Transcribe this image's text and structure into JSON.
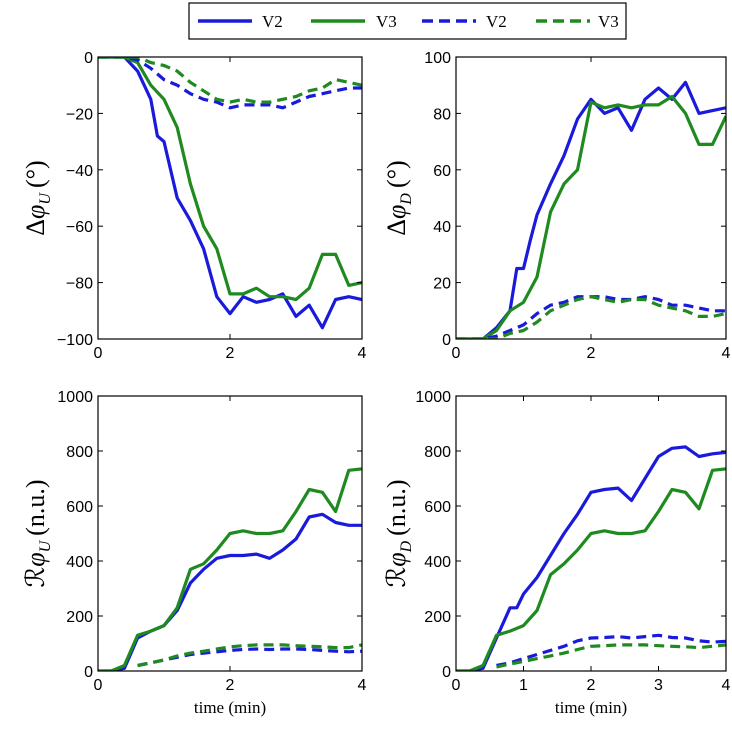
{
  "legend": {
    "entries": [
      {
        "label": "V2",
        "color": "#1a1adb",
        "dash": false
      },
      {
        "label": "V3",
        "color": "#1f8a1f",
        "dash": false
      },
      {
        "label": "V2",
        "color": "#1a1adb",
        "dash": true
      },
      {
        "label": "V3",
        "color": "#1f8a1f",
        "dash": true
      }
    ]
  },
  "chart_data": [
    {
      "type": "line",
      "ylabel": "Δφ_U (°)",
      "xlabel": "",
      "xlim": [
        0,
        4
      ],
      "ylim": [
        -100,
        0
      ],
      "xticks": [
        0,
        2,
        4
      ],
      "yticks": [
        -100,
        -80,
        -60,
        -40,
        -20,
        0
      ],
      "series": [
        {
          "name": "V2",
          "color": "#1a1adb",
          "dash": false,
          "x": [
            0,
            0.2,
            0.4,
            0.6,
            0.8,
            0.9,
            1.0,
            1.1,
            1.2,
            1.4,
            1.6,
            1.8,
            2.0,
            2.2,
            2.4,
            2.6,
            2.8,
            3.0,
            3.2,
            3.4,
            3.6,
            3.8,
            4.0
          ],
          "y": [
            0,
            0,
            0,
            -5,
            -15,
            -28,
            -30,
            -40,
            -50,
            -58,
            -68,
            -85,
            -91,
            -85,
            -87,
            -86,
            -84,
            -92,
            -88,
            -96,
            -86,
            -85,
            -86
          ]
        },
        {
          "name": "V3",
          "color": "#1f8a1f",
          "dash": false,
          "x": [
            0,
            0.2,
            0.4,
            0.6,
            0.8,
            1.0,
            1.2,
            1.4,
            1.6,
            1.8,
            2.0,
            2.2,
            2.4,
            2.6,
            2.8,
            3.0,
            3.2,
            3.4,
            3.6,
            3.8,
            4.0
          ],
          "y": [
            0,
            0,
            0,
            -2,
            -10,
            -15,
            -25,
            -45,
            -60,
            -68,
            -84,
            -84,
            -82,
            -85,
            -85,
            -86,
            -82,
            -70,
            -70,
            -81,
            -80
          ]
        },
        {
          "name": "V2",
          "color": "#1a1adb",
          "dash": true,
          "x": [
            0,
            0.2,
            0.4,
            0.6,
            0.8,
            1.0,
            1.2,
            1.4,
            1.6,
            1.8,
            2.0,
            2.2,
            2.4,
            2.6,
            2.8,
            3.0,
            3.2,
            3.4,
            3.6,
            3.8,
            4.0
          ],
          "y": [
            0,
            0,
            0,
            -1,
            -4,
            -8,
            -10,
            -13,
            -15,
            -16,
            -18,
            -17,
            -17,
            -17,
            -18,
            -16,
            -14,
            -13,
            -12,
            -11,
            -11
          ]
        },
        {
          "name": "V3",
          "color": "#1f8a1f",
          "dash": true,
          "x": [
            0,
            0.2,
            0.4,
            0.6,
            0.8,
            1.0,
            1.2,
            1.4,
            1.6,
            1.8,
            2.0,
            2.2,
            2.4,
            2.6,
            2.8,
            3.0,
            3.2,
            3.4,
            3.6,
            3.8,
            4.0
          ],
          "y": [
            0,
            0,
            0,
            0,
            -2,
            -3,
            -5,
            -9,
            -12,
            -15,
            -16,
            -15,
            -16,
            -16,
            -15,
            -14,
            -12,
            -11,
            -8,
            -9,
            -10
          ]
        }
      ]
    },
    {
      "type": "line",
      "ylabel": "Δφ_D (°)",
      "xlabel": "",
      "xlim": [
        0,
        4
      ],
      "ylim": [
        0,
        100
      ],
      "xticks": [
        0,
        2,
        4
      ],
      "yticks": [
        0,
        20,
        40,
        60,
        80,
        100
      ],
      "series": [
        {
          "name": "V2",
          "color": "#1a1adb",
          "dash": false,
          "x": [
            0,
            0.2,
            0.4,
            0.6,
            0.8,
            0.9,
            1.0,
            1.1,
            1.2,
            1.4,
            1.6,
            1.8,
            2.0,
            2.2,
            2.4,
            2.6,
            2.8,
            3.0,
            3.2,
            3.4,
            3.6,
            3.8,
            4.0
          ],
          "y": [
            0,
            0,
            0,
            4,
            10,
            25,
            25,
            35,
            44,
            55,
            65,
            78,
            85,
            80,
            82,
            74,
            85,
            89,
            85,
            91,
            80,
            81,
            82
          ]
        },
        {
          "name": "V3",
          "color": "#1f8a1f",
          "dash": false,
          "x": [
            0,
            0.2,
            0.4,
            0.6,
            0.8,
            1.0,
            1.2,
            1.4,
            1.6,
            1.8,
            2.0,
            2.2,
            2.4,
            2.6,
            2.8,
            3.0,
            3.2,
            3.4,
            3.6,
            3.8,
            4.0
          ],
          "y": [
            0,
            0,
            0,
            3,
            10,
            13,
            22,
            45,
            55,
            60,
            84,
            82,
            83,
            82,
            83,
            83,
            86,
            80,
            69,
            69,
            79
          ]
        },
        {
          "name": "V2",
          "color": "#1a1adb",
          "dash": true,
          "x": [
            0,
            0.2,
            0.4,
            0.6,
            0.8,
            1.0,
            1.2,
            1.4,
            1.6,
            1.8,
            2.0,
            2.2,
            2.4,
            2.6,
            2.8,
            3.0,
            3.2,
            3.4,
            3.6,
            3.8,
            4.0
          ],
          "y": [
            0,
            0,
            0,
            1,
            3,
            5,
            9,
            12,
            13,
            15,
            15,
            15,
            14,
            14,
            15,
            14,
            12,
            12,
            11,
            10,
            10
          ]
        },
        {
          "name": "V3",
          "color": "#1f8a1f",
          "dash": true,
          "x": [
            0,
            0.2,
            0.4,
            0.6,
            0.8,
            1.0,
            1.2,
            1.4,
            1.6,
            1.8,
            2.0,
            2.2,
            2.4,
            2.6,
            2.8,
            3.0,
            3.2,
            3.4,
            3.6,
            3.8,
            4.0
          ],
          "y": [
            0,
            0,
            0,
            0,
            2,
            3,
            6,
            10,
            12,
            14,
            15,
            14,
            13,
            14,
            14,
            12,
            11,
            10,
            8,
            8,
            9
          ]
        }
      ]
    },
    {
      "type": "line",
      "ylabel": "ℛφ_U (n.u.)",
      "xlabel": "time (min)",
      "xlim": [
        0,
        4
      ],
      "ylim": [
        0,
        1000
      ],
      "xticks": [
        0,
        2,
        4
      ],
      "yticks": [
        0,
        200,
        400,
        600,
        800,
        1000
      ],
      "series": [
        {
          "name": "V2",
          "color": "#1a1adb",
          "dash": false,
          "x": [
            0,
            0.2,
            0.4,
            0.6,
            0.8,
            1.0,
            1.2,
            1.4,
            1.6,
            1.8,
            2.0,
            2.2,
            2.4,
            2.6,
            2.8,
            3.0,
            3.2,
            3.4,
            3.6,
            3.8,
            4.0
          ],
          "y": [
            0,
            0,
            10,
            120,
            145,
            165,
            220,
            320,
            370,
            410,
            420,
            420,
            425,
            410,
            440,
            480,
            560,
            570,
            540,
            530,
            530
          ]
        },
        {
          "name": "V3",
          "color": "#1f8a1f",
          "dash": false,
          "x": [
            0,
            0.2,
            0.4,
            0.6,
            0.8,
            1.0,
            1.2,
            1.4,
            1.6,
            1.8,
            2.0,
            2.2,
            2.4,
            2.6,
            2.8,
            3.0,
            3.2,
            3.4,
            3.6,
            3.8,
            4.0
          ],
          "y": [
            0,
            0,
            20,
            130,
            145,
            165,
            230,
            370,
            390,
            440,
            500,
            510,
            500,
            500,
            510,
            580,
            660,
            650,
            580,
            730,
            735
          ]
        },
        {
          "name": "V2",
          "color": "#1a1adb",
          "dash": true,
          "x": [
            0.6,
            0.8,
            1.0,
            1.2,
            1.4,
            1.6,
            1.8,
            2.0,
            2.2,
            2.4,
            2.6,
            2.8,
            3.0,
            3.2,
            3.4,
            3.6,
            3.8,
            4.0
          ],
          "y": [
            20,
            30,
            40,
            50,
            60,
            65,
            70,
            75,
            78,
            80,
            78,
            80,
            80,
            78,
            75,
            72,
            70,
            72
          ]
        },
        {
          "name": "V3",
          "color": "#1f8a1f",
          "dash": true,
          "x": [
            0.6,
            0.8,
            1.0,
            1.2,
            1.4,
            1.6,
            1.8,
            2.0,
            2.2,
            2.4,
            2.6,
            2.8,
            3.0,
            3.2,
            3.4,
            3.6,
            3.8,
            4.0
          ],
          "y": [
            20,
            30,
            40,
            55,
            65,
            72,
            80,
            88,
            92,
            95,
            95,
            95,
            92,
            90,
            88,
            85,
            85,
            95
          ]
        }
      ]
    },
    {
      "type": "line",
      "ylabel": "ℛφ_D (n.u.)",
      "xlabel": "time (min)",
      "xlim": [
        0,
        4
      ],
      "ylim": [
        0,
        1000
      ],
      "xticks": [
        0,
        1,
        2,
        3,
        4
      ],
      "yticks": [
        0,
        200,
        400,
        600,
        800,
        1000
      ],
      "series": [
        {
          "name": "V2",
          "color": "#1a1adb",
          "dash": false,
          "x": [
            0,
            0.2,
            0.4,
            0.6,
            0.8,
            0.9,
            1.0,
            1.2,
            1.4,
            1.6,
            1.8,
            2.0,
            2.2,
            2.4,
            2.6,
            2.8,
            3.0,
            3.2,
            3.4,
            3.6,
            3.8,
            4.0
          ],
          "y": [
            0,
            0,
            10,
            120,
            230,
            230,
            280,
            340,
            420,
            500,
            570,
            650,
            660,
            665,
            620,
            700,
            780,
            810,
            815,
            780,
            790,
            795
          ]
        },
        {
          "name": "V3",
          "color": "#1f8a1f",
          "dash": false,
          "x": [
            0,
            0.2,
            0.4,
            0.6,
            0.8,
            1.0,
            1.2,
            1.4,
            1.6,
            1.8,
            2.0,
            2.2,
            2.4,
            2.6,
            2.8,
            3.0,
            3.2,
            3.4,
            3.6,
            3.8,
            4.0
          ],
          "y": [
            0,
            0,
            20,
            130,
            145,
            165,
            220,
            350,
            390,
            440,
            500,
            510,
            500,
            500,
            510,
            580,
            660,
            650,
            590,
            730,
            735
          ]
        },
        {
          "name": "V2",
          "color": "#1a1adb",
          "dash": true,
          "x": [
            0.6,
            0.8,
            1.0,
            1.2,
            1.4,
            1.6,
            1.8,
            2.0,
            2.2,
            2.4,
            2.6,
            2.8,
            3.0,
            3.2,
            3.4,
            3.6,
            3.8,
            4.0
          ],
          "y": [
            20,
            30,
            45,
            60,
            75,
            90,
            110,
            120,
            122,
            125,
            120,
            125,
            130,
            122,
            120,
            110,
            105,
            108
          ]
        },
        {
          "name": "V3",
          "color": "#1f8a1f",
          "dash": true,
          "x": [
            0.6,
            0.8,
            1.0,
            1.2,
            1.4,
            1.6,
            1.8,
            2.0,
            2.2,
            2.4,
            2.6,
            2.8,
            3.0,
            3.2,
            3.4,
            3.6,
            3.8,
            4.0
          ],
          "y": [
            15,
            25,
            35,
            45,
            55,
            65,
            78,
            90,
            92,
            95,
            95,
            95,
            92,
            90,
            88,
            85,
            90,
            95
          ]
        }
      ]
    }
  ]
}
